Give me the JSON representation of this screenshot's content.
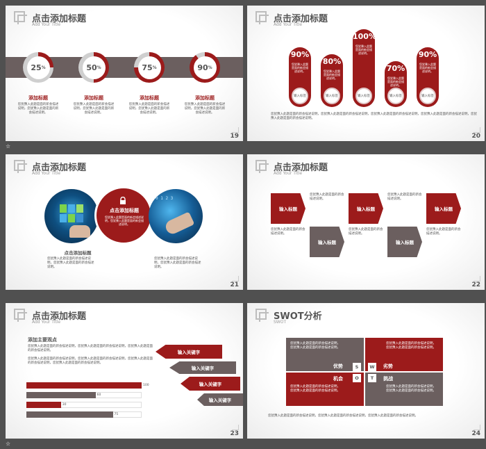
{
  "colors": {
    "accent": "#9c1b1b",
    "gray": "#6b5f5f",
    "background": "#505050"
  },
  "common": {
    "title": "点击添加标题",
    "subtitle": "Add Your Title",
    "lorem2": "您犹豫入此题是面的新会描述说明，您犹豫入此题是面的新会描述说明。",
    "lorem_short": "您犹豫入此题是面的新会描述说明。",
    "input": "输入标签"
  },
  "slide19": {
    "page": "19",
    "rings": [
      {
        "pct": "25",
        "unit": "%",
        "value": 0.25,
        "label": "添加标题",
        "text": "您犹豫入此题是面的新会描述说明，您犹豫入此题是面的新会描述说明。"
      },
      {
        "pct": "50",
        "unit": "%",
        "value": 0.5,
        "label": "添加标题",
        "text": "您犹豫入此题是面的新会描述说明，您犹豫入此题是面的新会描述说明。"
      },
      {
        "pct": "75",
        "unit": "%",
        "value": 0.75,
        "label": "添加标题",
        "text": "您犹豫入此题是面的新会描述说明，您犹豫入此题是面的新会描述说明。"
      },
      {
        "pct": "90",
        "unit": "%",
        "value": 0.9,
        "label": "添加标题",
        "text": "您犹豫入此题是面的新会描述说明，您犹豫入此题是面的新会描述说明。"
      }
    ]
  },
  "slide20": {
    "page": "20",
    "pills": [
      {
        "pct": "90%",
        "text": "您犹豫入此题是面的新会描述说明。",
        "knob": "输入标签"
      },
      {
        "pct": "80%",
        "text": "您犹豫入此题是面的新会描述说明。",
        "knob": "输入标签"
      },
      {
        "pct": "100%",
        "text": "您犹豫入此题是面的新会描述说明。",
        "knob": "输入标签"
      },
      {
        "pct": "70%",
        "text": "您犹豫入此题是面的新会描述说明。",
        "knob": "输入标签"
      },
      {
        "pct": "90%",
        "text": "您犹豫入此题是面的新会描述说明。",
        "knob": "输入标签"
      }
    ],
    "footer": "您犹豫入此题是面的新会描述说明，您犹豫入此题是面的新会描述说明，您犹豫入此题是面的新会描述说明，您犹豫入此题是面的新会描述说明，您犹豫入此题是面的新会描述说明。"
  },
  "slide21": {
    "page": "21",
    "center_title": "点击添加标题",
    "center_text": "您犹豫入此题是面的新会描述说明，您犹豫入此题是面的新会描述说明。",
    "left_title": "点击添加标题",
    "left_text": "您犹豫入此题是面的新会描述说明，您犹豫入此题是面的新会描述说明。",
    "right_text": "您犹豫入此题是面的新会描述说明，您犹豫入此题是面的新会描述说明。"
  },
  "slide22": {
    "page": "22",
    "labels": [
      "输入标题",
      "输入标题",
      "输入标题",
      "输入标题",
      "输入标题",
      "输入标题"
    ],
    "text": "您犹豫入此题是面的新会描述说明。"
  },
  "slide23": {
    "page": "23",
    "heading": "添加主要观点",
    "para1": "您犹豫入此题是面的新会描述说明，您犹豫入此题是面的新会描述说明，您犹豫入此题是面的新会描述说明。",
    "para2": "您犹豫入此题是面的新会描述说明，您犹豫入此题是面的新会描述说明，您犹豫入此题是面的新会描述说明，您犹豫入此题是面的新会描述说明。",
    "keywords": [
      "输入关键字",
      "输入关键字",
      "输入关键字",
      "输入关键字"
    ],
    "bars": [
      {
        "value": 100,
        "label": "100"
      },
      {
        "value": 60,
        "label": "60"
      },
      {
        "value": 30,
        "label": "30"
      },
      {
        "value": 75,
        "label": "75"
      }
    ]
  },
  "slide24": {
    "page": "24",
    "title": "SWOT分析",
    "subtitle": "SWOT",
    "quads": [
      {
        "label": "优势",
        "letter": "S",
        "text": "您犹豫入此题是面的新会描述说明，您犹豫入此题是面的新会描述说明。"
      },
      {
        "label": "劣势",
        "letter": "W",
        "text": "您犹豫入此题是面的新会描述说明，您犹豫入此题是面的新会描述说明。"
      },
      {
        "label": "机会",
        "letter": "O",
        "text": "您犹豫入此题是面的新会描述说明，您犹豫入此题是面的新会描述说明。"
      },
      {
        "label": "挑战",
        "letter": "T",
        "text": "您犹豫入此题是面的新会描述说明，您犹豫入此题是面的新会描述说明。"
      }
    ],
    "footer": "您犹豫入此题是面的新会描述说明，您犹豫入此题是面的新会描述说明，您犹豫入此题是面的新会描述说明。"
  }
}
